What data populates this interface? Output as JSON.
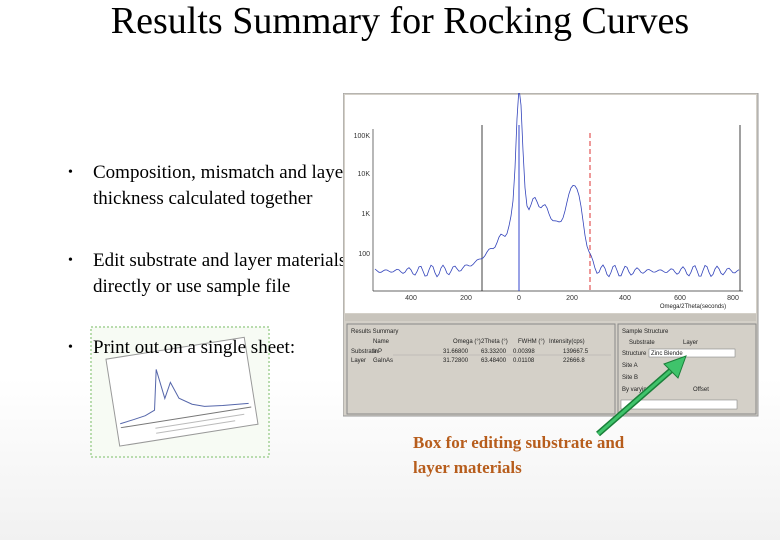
{
  "title": "Results Summary for Rocking Curves",
  "bullets": [
    "Composition, mismatch and layer thickness calculated together",
    "Edit substrate and layer materials directly or use sample file",
    "Print out on a single sheet:"
  ],
  "annotation": "Box for editing substrate and layer materials",
  "screenshot": {
    "plot_y_labels": [
      "100K",
      "10K",
      "1K",
      "100"
    ],
    "plot_x_labels": [
      "400",
      "200",
      "0",
      "200",
      "400",
      "600",
      "800"
    ],
    "x_axis_title": "Omega/2Theta(seconds)",
    "results_title": "Results Summary",
    "columns": [
      "Name",
      "Omega (°)",
      "2Theta (°)",
      "FWHM (°)",
      "Intensity(cps)"
    ],
    "rows": [
      [
        "Substrate",
        "InP",
        "31.66800",
        "63.33200",
        "0.00398",
        "139667.5"
      ],
      [
        "Layer",
        "GaInAs",
        "31.72800",
        "63.48400",
        "0.01108",
        "22666.8"
      ]
    ],
    "structure_title": "Sample Structure",
    "options": [
      "Substrate",
      "Layer"
    ],
    "structure_label": "Structure",
    "structure_value": "Zinc Blende",
    "site_a": "Site A",
    "site_b": "Site B",
    "by_varying": "By varying",
    "offset": "Offset"
  }
}
